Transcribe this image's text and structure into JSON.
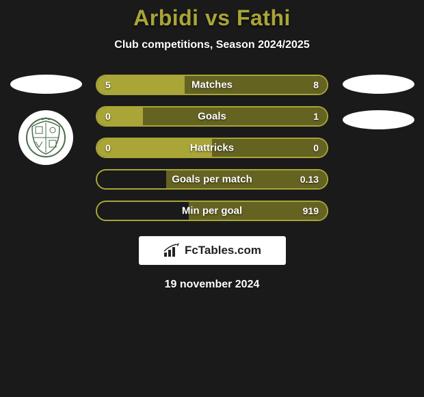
{
  "header": {
    "title": "Arbidi vs Fathi",
    "subtitle": "Club competitions, Season 2024/2025",
    "title_color": "#a9a537"
  },
  "colors": {
    "left_fill": "#a9a537",
    "right_fill": "#656322",
    "border": "#a9a537",
    "background": "#1a1a1a"
  },
  "stats": [
    {
      "label": "Matches",
      "left_value": "5",
      "right_value": "8",
      "left_pct": 38,
      "right_pct": 62
    },
    {
      "label": "Goals",
      "left_value": "0",
      "right_value": "1",
      "left_pct": 20,
      "right_pct": 80
    },
    {
      "label": "Hattricks",
      "left_value": "0",
      "right_value": "0",
      "left_pct": 50,
      "right_pct": 50
    },
    {
      "label": "Goals per match",
      "left_value": "",
      "right_value": "0.13",
      "left_pct": 0,
      "right_pct": 70
    },
    {
      "label": "Min per goal",
      "left_value": "",
      "right_value": "919",
      "left_pct": 0,
      "right_pct": 60
    }
  ],
  "branding": {
    "text": "FcTables.com"
  },
  "date": "19 november 2024",
  "bar_style": {
    "height": 30,
    "border_radius": 15,
    "label_fontsize": 15,
    "value_fontsize": 14
  }
}
